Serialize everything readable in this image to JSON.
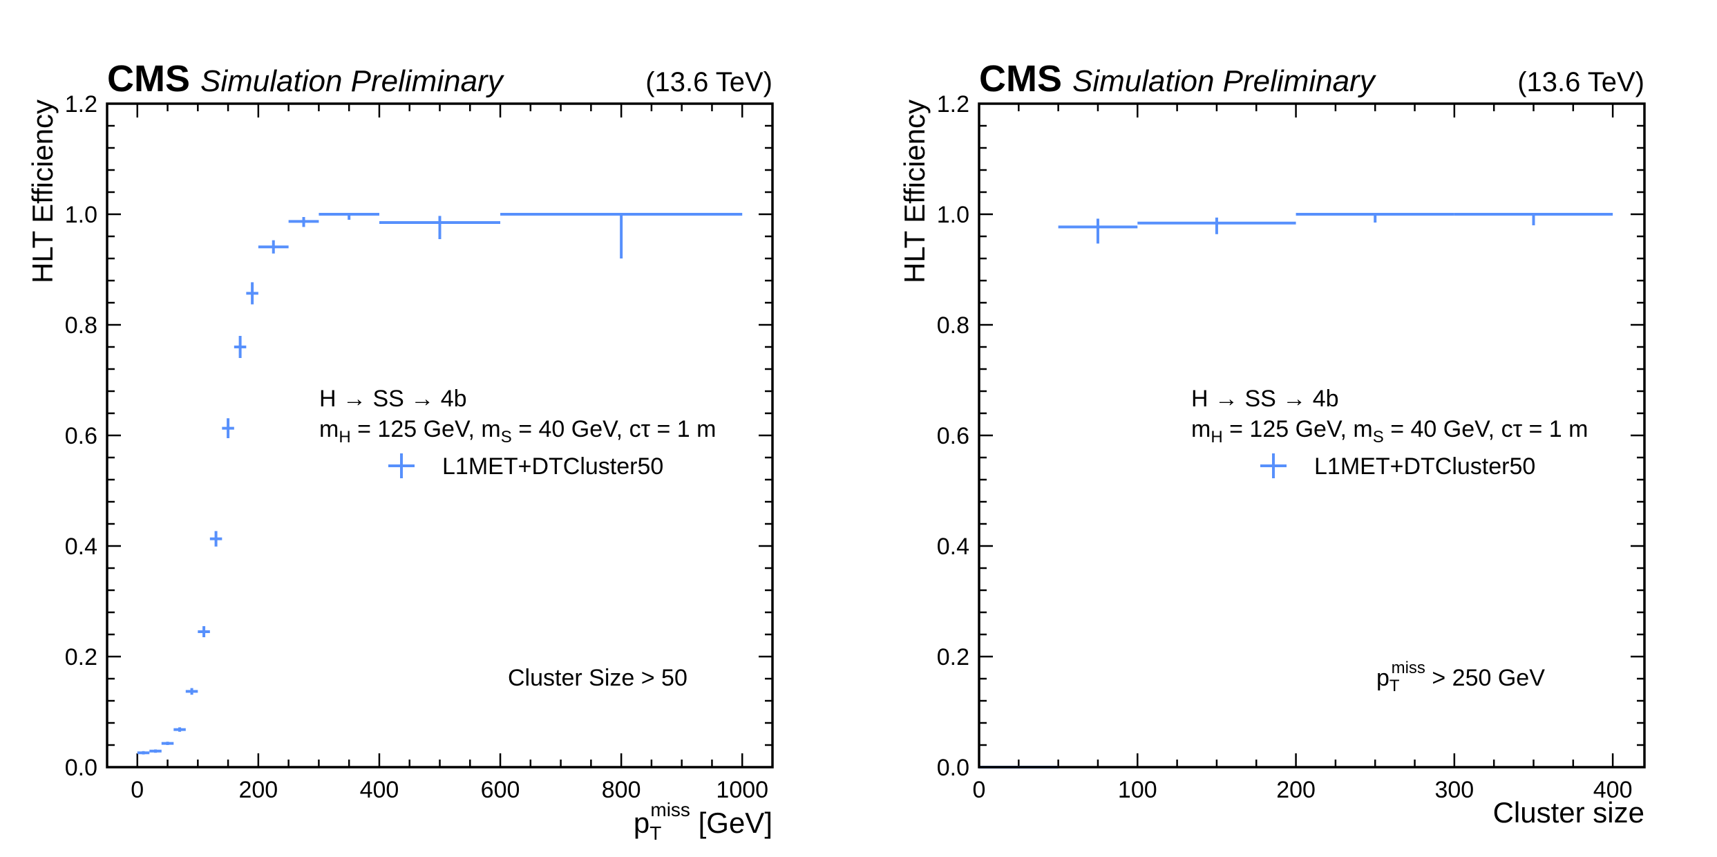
{
  "chart_data": [
    {
      "type": "errorbar",
      "experiment": "CMS",
      "status": "Simulation Preliminary",
      "energy": "(13.6 TeV)",
      "xlabel_main": "p",
      "xlabel_sub": "T",
      "xlabel_sup": "miss",
      "xlabel_unit": " [GeV]",
      "ylabel": "HLT Efficiency",
      "xlim": [
        -50,
        1050
      ],
      "ylim": [
        0,
        1.2
      ],
      "xticks": [
        0,
        200,
        400,
        600,
        800,
        1000
      ],
      "yticks": [
        0.0,
        0.2,
        0.4,
        0.6,
        0.8,
        1.0,
        1.2
      ],
      "xtick_labels": [
        "0",
        "200",
        "400",
        "600",
        "800",
        "1000"
      ],
      "ytick_labels": [
        "0.0",
        "0.2",
        "0.4",
        "0.6",
        "0.8",
        "1.0",
        "1.2"
      ],
      "process_label": "H → SS → 4b",
      "mass_line": {
        "mh_main": "m",
        "mh_sub": "H",
        "mh_value": " = 125 GeV, ",
        "ms_main": "m",
        "ms_sub": "S",
        "ms_value": " = 40 GeV, cτ = 1 m"
      },
      "legend": "L1MET+DTCluster50",
      "cut_label": {
        "text": "Cluster Size > 50"
      },
      "color": "#5790fc",
      "series": [
        {
          "name": "L1MET+DTCluster50",
          "points": [
            {
              "x_low": 0,
              "x_high": 20,
              "y": 0.026,
              "err_low": 0.003,
              "err_high": 0.003
            },
            {
              "x_low": 20,
              "x_high": 40,
              "y": 0.029,
              "err_low": 0.003,
              "err_high": 0.003
            },
            {
              "x_low": 40,
              "x_high": 60,
              "y": 0.043,
              "err_low": 0.003,
              "err_high": 0.003
            },
            {
              "x_low": 60,
              "x_high": 80,
              "y": 0.068,
              "err_low": 0.004,
              "err_high": 0.004
            },
            {
              "x_low": 80,
              "x_high": 100,
              "y": 0.137,
              "err_low": 0.006,
              "err_high": 0.006
            },
            {
              "x_low": 100,
              "x_high": 120,
              "y": 0.245,
              "err_low": 0.01,
              "err_high": 0.01
            },
            {
              "x_low": 120,
              "x_high": 140,
              "y": 0.413,
              "err_low": 0.014,
              "err_high": 0.014
            },
            {
              "x_low": 140,
              "x_high": 160,
              "y": 0.613,
              "err_low": 0.018,
              "err_high": 0.018
            },
            {
              "x_low": 160,
              "x_high": 180,
              "y": 0.76,
              "err_low": 0.02,
              "err_high": 0.02
            },
            {
              "x_low": 180,
              "x_high": 200,
              "y": 0.857,
              "err_low": 0.02,
              "err_high": 0.02
            },
            {
              "x_low": 200,
              "x_high": 250,
              "y": 0.941,
              "err_low": 0.012,
              "err_high": 0.012
            },
            {
              "x_low": 250,
              "x_high": 300,
              "y": 0.987,
              "err_low": 0.01,
              "err_high": 0.008
            },
            {
              "x_low": 300,
              "x_high": 400,
              "y": 1.0,
              "err_low": 0.01,
              "err_high": 0.0
            },
            {
              "x_low": 400,
              "x_high": 600,
              "y": 0.985,
              "err_low": 0.03,
              "err_high": 0.012
            },
            {
              "x_low": 600,
              "x_high": 1000,
              "y": 1.0,
              "err_low": 0.08,
              "err_high": 0.0
            }
          ]
        }
      ]
    },
    {
      "type": "errorbar",
      "experiment": "CMS",
      "status": "Simulation Preliminary",
      "energy": "(13.6 TeV)",
      "xlabel": "Cluster size",
      "ylabel": "HLT Efficiency",
      "xlim": [
        0,
        420
      ],
      "ylim": [
        0,
        1.2
      ],
      "xticks": [
        0,
        100,
        200,
        300,
        400
      ],
      "yticks": [
        0.0,
        0.2,
        0.4,
        0.6,
        0.8,
        1.0,
        1.2
      ],
      "xtick_labels": [
        "0",
        "100",
        "200",
        "300",
        "400"
      ],
      "ytick_labels": [
        "0.0",
        "0.2",
        "0.4",
        "0.6",
        "0.8",
        "1.0",
        "1.2"
      ],
      "process_label": "H → SS → 4b",
      "mass_line": {
        "mh_main": "m",
        "mh_sub": "H",
        "mh_value": " = 125 GeV, ",
        "ms_main": "m",
        "ms_sub": "S",
        "ms_value": " = 40 GeV, cτ = 1 m"
      },
      "legend": "L1MET+DTCluster50",
      "cut_label": {
        "main": "p",
        "sub": "T",
        "sup": "miss",
        "rest": " > 250 GeV"
      },
      "color": "#5790fc",
      "series": [
        {
          "name": "L1MET+DTCluster50",
          "points": [
            {
              "x_low": 0,
              "x_high": 50,
              "y": 0.0,
              "err_low": 0.0,
              "err_high": 0.0
            },
            {
              "x_low": 50,
              "x_high": 100,
              "y": 0.977,
              "err_low": 0.03,
              "err_high": 0.015
            },
            {
              "x_low": 100,
              "x_high": 200,
              "y": 0.984,
              "err_low": 0.02,
              "err_high": 0.01
            },
            {
              "x_low": 200,
              "x_high": 300,
              "y": 1.0,
              "err_low": 0.015,
              "err_high": 0.0
            },
            {
              "x_low": 300,
              "x_high": 400,
              "y": 1.0,
              "err_low": 0.02,
              "err_high": 0.0
            }
          ]
        }
      ]
    }
  ]
}
